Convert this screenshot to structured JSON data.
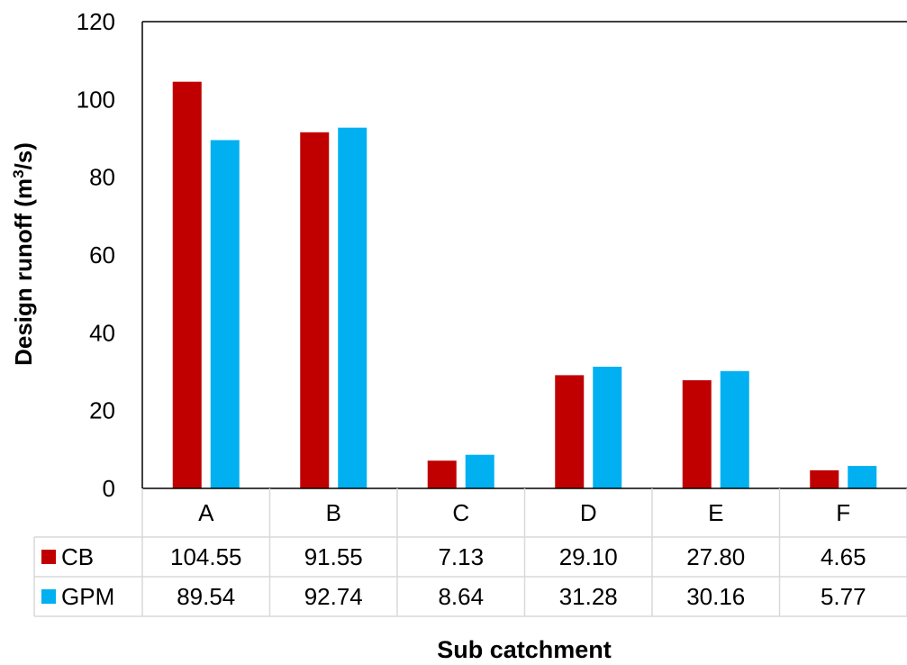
{
  "chart_data": {
    "type": "bar",
    "categories": [
      "A",
      "B",
      "C",
      "D",
      "E",
      "F"
    ],
    "series": [
      {
        "name": "CB",
        "color": "#C00000",
        "values": [
          104.55,
          91.55,
          7.13,
          29.1,
          27.8,
          4.65
        ],
        "labels": [
          "104.55",
          "91.55",
          "7.13",
          "29.10",
          "27.80",
          "4.65"
        ]
      },
      {
        "name": "GPM",
        "color": "#00B0F0",
        "values": [
          89.54,
          92.74,
          8.64,
          31.28,
          30.16,
          5.77
        ],
        "labels": [
          "89.54",
          "92.74",
          "8.64",
          "31.28",
          "30.16",
          "5.77"
        ]
      }
    ],
    "ylabel": "Design runoff (m",
    "ylabel_sup": "3",
    "ylabel_tail": "/s)",
    "xlabel": "Sub catchment",
    "ylim": [
      0,
      120
    ],
    "yticks": [
      0,
      20,
      40,
      60,
      80,
      100,
      120
    ],
    "grid": false,
    "legend": "data-table",
    "data_table": true
  }
}
